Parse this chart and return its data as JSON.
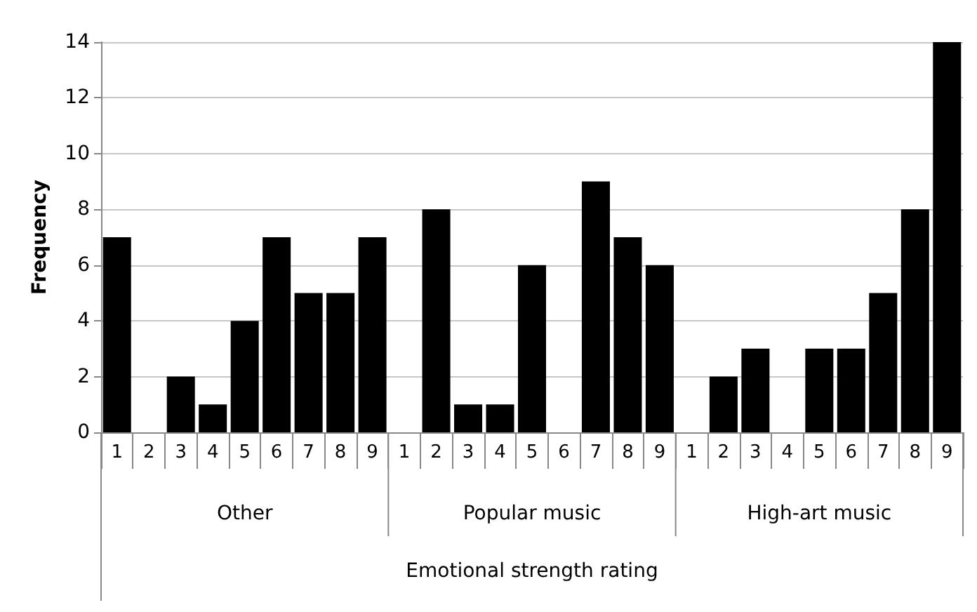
{
  "chart_data": {
    "type": "bar",
    "xlabel": "Emotional strength rating",
    "ylabel": "Frequency",
    "categories": [
      "1",
      "2",
      "3",
      "4",
      "5",
      "6",
      "7",
      "8",
      "9",
      "1",
      "2",
      "3",
      "4",
      "5",
      "6",
      "7",
      "8",
      "9",
      "1",
      "2",
      "3",
      "4",
      "5",
      "6",
      "7",
      "8",
      "9"
    ],
    "values": [
      7,
      0,
      2,
      1,
      4,
      7,
      5,
      5,
      7,
      0,
      8,
      1,
      1,
      6,
      0,
      9,
      7,
      6,
      0,
      2,
      3,
      0,
      3,
      3,
      5,
      8,
      14
    ],
    "color": "#000000",
    "annotations": [
      "Other",
      "Popular music",
      "High-art music"
    ],
    "ylim": [
      0,
      14
    ],
    "yticks": [
      0,
      2,
      4,
      6,
      8,
      10,
      12,
      14
    ],
    "grid": "y"
  }
}
